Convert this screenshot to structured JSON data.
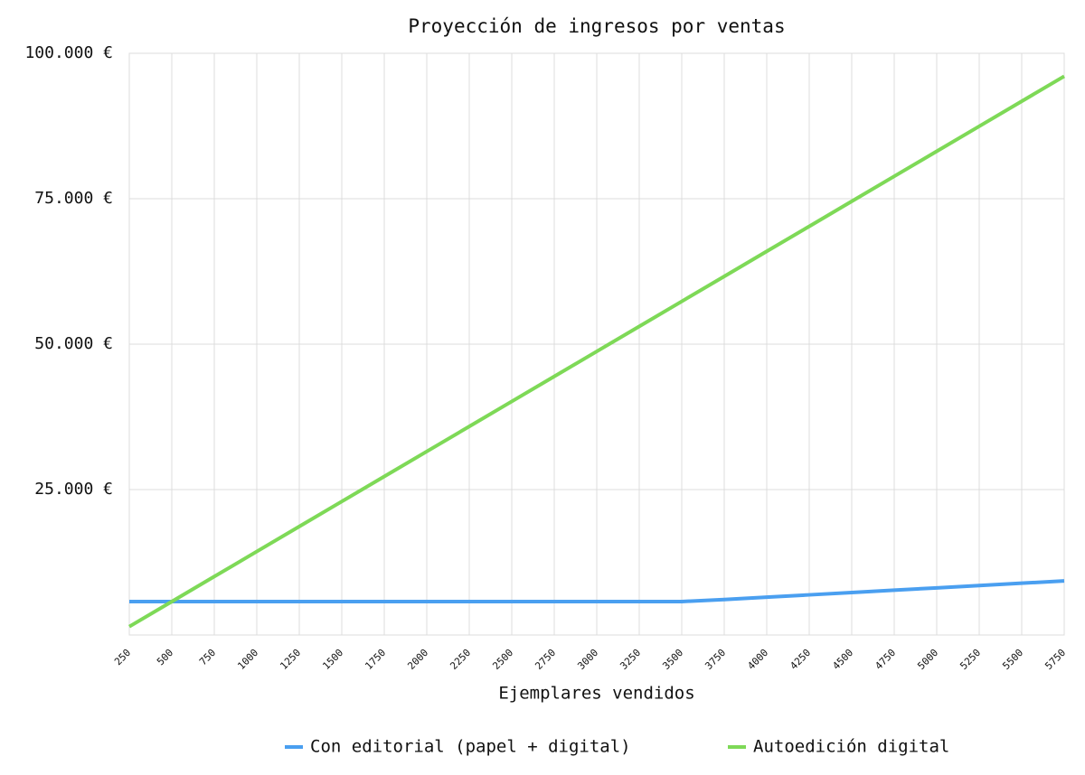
{
  "chart_data": {
    "type": "line",
    "title": "Proyección de ingresos por ventas",
    "x_label": "Ejemplares vendidos",
    "categories": [
      "250",
      "500",
      "750",
      "1000",
      "1250",
      "1500",
      "1750",
      "2000",
      "2250",
      "2500",
      "2750",
      "3000",
      "3250",
      "3500",
      "3750",
      "4000",
      "4250",
      "4500",
      "4750",
      "5000",
      "5250",
      "5500",
      "5750"
    ],
    "series": [
      {
        "name": "Con editorial (papel + digital)",
        "color": "#4a9ff0",
        "values": [
          5750,
          5750,
          5750,
          5750,
          5750,
          5750,
          5750,
          5750,
          5750,
          5750,
          5750,
          5750,
          5750,
          5750,
          6100,
          6500,
          6900,
          7300,
          7700,
          8100,
          8500,
          8900,
          9300
        ]
      },
      {
        "name": "Autoedición digital",
        "color": "#7ed957",
        "values": [
          1450,
          5750,
          10050,
          14350,
          18650,
          22950,
          27250,
          31550,
          35850,
          40150,
          44450,
          48750,
          53050,
          57350,
          61650,
          65950,
          70250,
          74550,
          78850,
          83150,
          87450,
          91750,
          96050
        ]
      }
    ],
    "ylim": [
      0,
      100000
    ],
    "yticks": [
      {
        "value": 25000,
        "label": "25.000 €"
      },
      {
        "value": 50000,
        "label": "50.000 €"
      },
      {
        "value": 75000,
        "label": "75.000 €"
      },
      {
        "value": 100000,
        "label": "100.000 €"
      }
    ],
    "grid": true,
    "legend": "bottom"
  }
}
